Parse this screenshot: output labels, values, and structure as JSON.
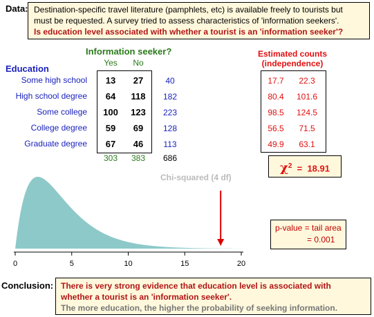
{
  "data_label": "Data:",
  "description": {
    "line1": "Destination-specific travel literature (pamphlets, etc) is available freely to tourists but",
    "line2": "must be requested. A survey tried to assess characteristics of 'information seekers'.",
    "question": "Is education level associated with whether a tourist is an 'information seeker'?"
  },
  "table": {
    "column_title": "Information seeker?",
    "row_title": "Education",
    "columns": [
      "Yes",
      "No"
    ],
    "rows": [
      {
        "label": "Some high school",
        "yes": "13",
        "no": "27",
        "total": "40"
      },
      {
        "label": "High school degree",
        "yes": "64",
        "no": "118",
        "total": "182"
      },
      {
        "label": "Some college",
        "yes": "100",
        "no": "123",
        "total": "223"
      },
      {
        "label": "College degree",
        "yes": "59",
        "no": "69",
        "total": "128"
      },
      {
        "label": "Graduate degree",
        "yes": "67",
        "no": "46",
        "total": "113"
      }
    ],
    "column_totals": [
      "303",
      "383"
    ],
    "grand_total": "686"
  },
  "estimated": {
    "title_line1": "Estimated counts",
    "title_line2": "(independence)",
    "rows": [
      [
        "17.7",
        "22.3"
      ],
      [
        "80.4",
        "101.6"
      ],
      [
        "98.5",
        "124.5"
      ],
      [
        "56.5",
        "71.5"
      ],
      [
        "49.9",
        "63.1"
      ]
    ]
  },
  "chi_squared": {
    "symbol": "χ",
    "superscript": "2",
    "equals": "=",
    "value": "18.91"
  },
  "pvalue": {
    "line1": "p-value  =  tail area",
    "line2": "=  0.001"
  },
  "distribution": {
    "label": "Chi-squared (4 df)",
    "df": 4,
    "xmin": 0,
    "xmax": 20,
    "ticks": [
      "0",
      "5",
      "10",
      "15",
      "20"
    ],
    "observed": 18.91,
    "fill_color": "#8ec9c9",
    "arrow_color": "#dd0000"
  },
  "conclusion_label": "Conclusion:",
  "conclusion": {
    "line1": "There is very strong evidence that education level is associated with",
    "line2": "whether a tourist is an 'information seeker'.",
    "line3": "The more education, the higher the probability of seeking information."
  }
}
